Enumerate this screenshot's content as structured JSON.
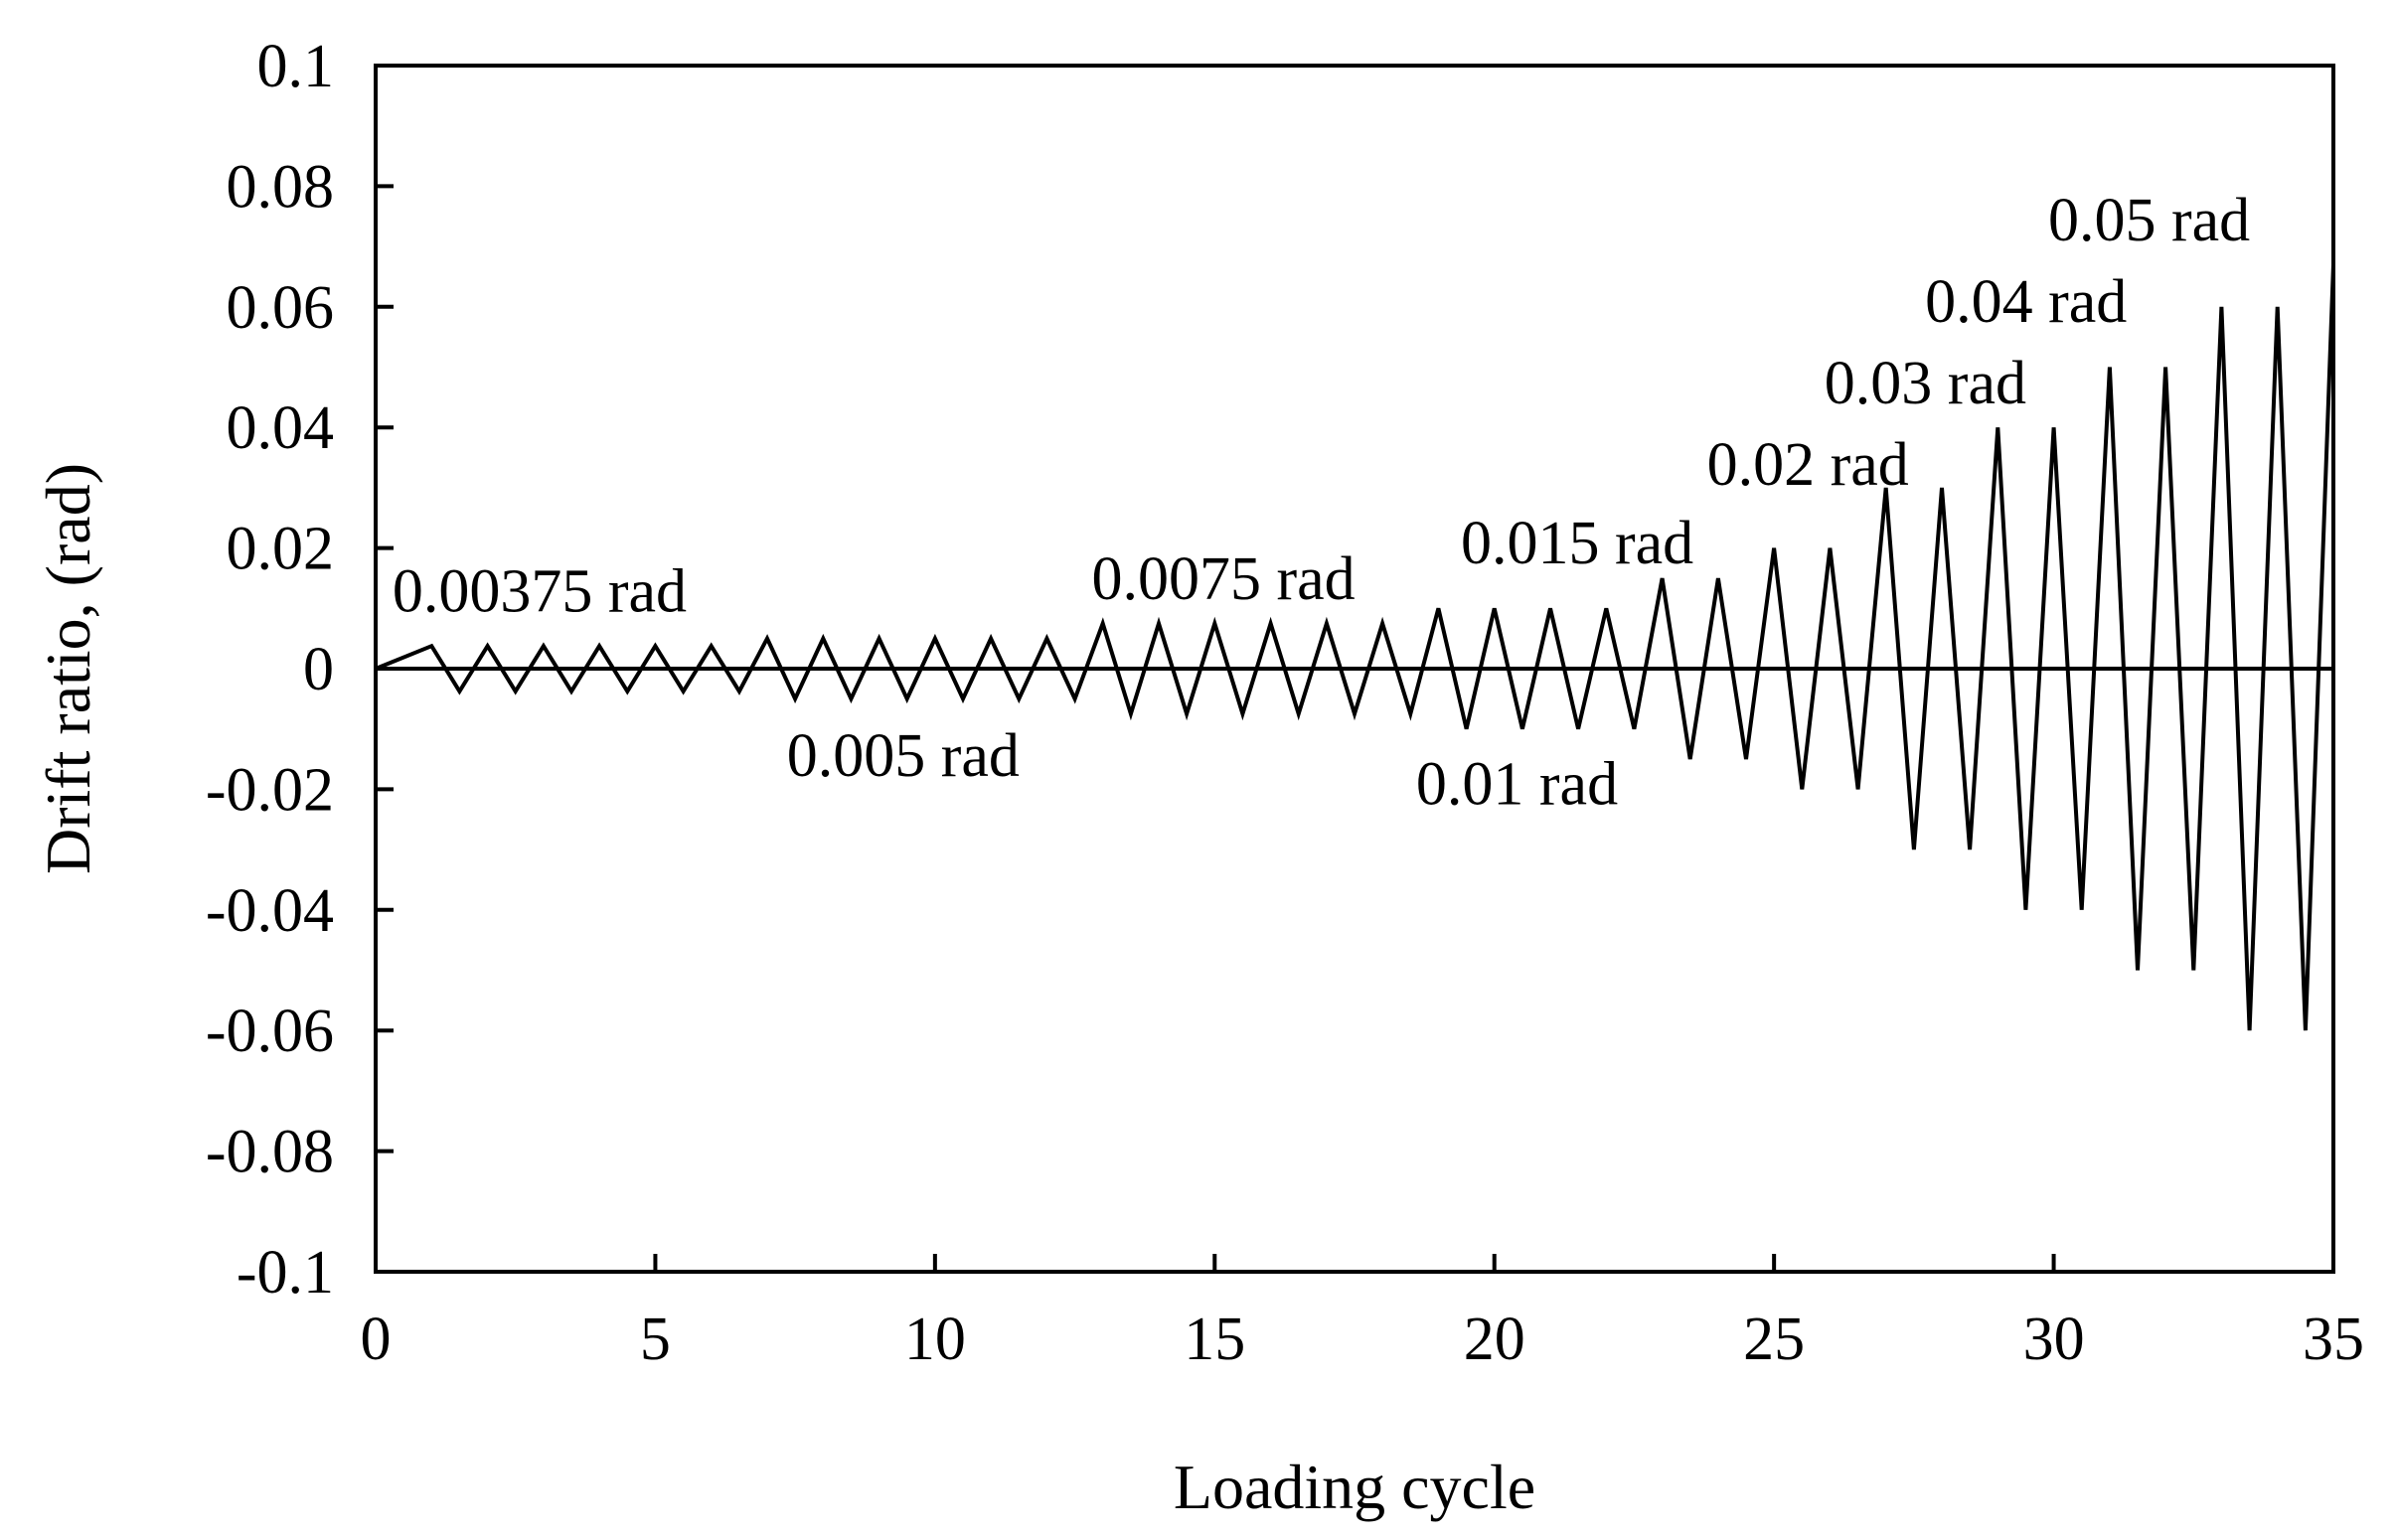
{
  "chart_data": {
    "type": "line",
    "title": "",
    "xlabel": "Loading cycle",
    "ylabel": "Drift  ratio,  (rad)",
    "xlim": [
      0,
      35
    ],
    "ylim": [
      -0.1,
      0.1
    ],
    "xticks": [
      0,
      5,
      10,
      15,
      20,
      25,
      30,
      35
    ],
    "xtick_labels": [
      "0",
      "5",
      "10",
      "15",
      "20",
      "25",
      "30",
      "35"
    ],
    "yticks": [
      0.1,
      0.08,
      0.06,
      0.04,
      0.02,
      0,
      -0.02,
      -0.04,
      -0.06,
      -0.08,
      -0.1
    ],
    "ytick_labels": [
      "0.1",
      "0.08",
      "0.06",
      "0.04",
      "0.02",
      "0",
      "-0.02",
      "-0.04",
      "-0.06",
      "-0.08",
      "-0.1"
    ],
    "grid": false,
    "legend": "none",
    "zero_line": true,
    "line_color": "#000000",
    "series": [
      {
        "x": [
          0,
          1,
          1.5,
          2,
          2.5,
          3,
          3.5,
          4,
          4.5,
          5,
          5.5,
          6,
          6.5,
          7,
          7.5,
          8,
          8.5,
          9,
          9.5,
          10,
          10.5,
          11,
          11.5,
          12,
          12.5,
          13,
          13.5,
          14,
          14.5,
          15,
          15.5,
          16,
          16.5,
          17,
          17.5,
          18,
          18.5,
          19,
          19.5,
          20,
          20.5,
          21,
          21.5,
          22,
          22.5,
          23,
          23.5,
          24,
          24.5,
          25,
          25.5,
          26,
          26.5,
          27,
          27.5,
          28,
          28.5,
          29,
          29.5,
          30,
          30.5,
          31,
          31.5,
          32,
          32.5,
          33,
          33.5,
          34,
          34.5,
          35,
          35
        ],
        "y": [
          0,
          0.00375,
          -0.00375,
          0.00375,
          -0.00375,
          0.00375,
          -0.00375,
          0.00375,
          -0.00375,
          0.00375,
          -0.00375,
          0.00375,
          -0.00375,
          0.005,
          -0.005,
          0.005,
          -0.005,
          0.005,
          -0.005,
          0.005,
          -0.005,
          0.005,
          -0.005,
          0.005,
          -0.005,
          0.0075,
          -0.0075,
          0.0075,
          -0.0075,
          0.0075,
          -0.0075,
          0.0075,
          -0.0075,
          0.0075,
          -0.0075,
          0.0075,
          -0.0075,
          0.01,
          -0.01,
          0.01,
          -0.01,
          0.01,
          -0.01,
          0.01,
          -0.01,
          0.015,
          -0.015,
          0.015,
          -0.015,
          0.02,
          -0.02,
          0.02,
          -0.02,
          0.03,
          -0.03,
          0.03,
          -0.03,
          0.04,
          -0.04,
          0.04,
          -0.04,
          0.05,
          -0.05,
          0.05,
          -0.05,
          0.06,
          -0.06,
          0.06,
          -0.06,
          0.067,
          0.035
        ]
      }
    ],
    "annotations": [
      {
        "text": "0.00375 rad",
        "x": 0.3,
        "y": 0.0095
      },
      {
        "text": "0.005 rad",
        "x": 7.35,
        "y": -0.0178
      },
      {
        "text": "0.0075 rad",
        "x": 12.8,
        "y": 0.0115
      },
      {
        "text": "0.01 rad",
        "x": 18.6,
        "y": -0.0225
      },
      {
        "text": "0.015 rad",
        "x": 19.4,
        "y": 0.0175
      },
      {
        "text": "0.02 rad",
        "x": 23.8,
        "y": 0.0305
      },
      {
        "text": "0.03 rad",
        "x": 25.9,
        "y": 0.044
      },
      {
        "text": "0.04 rad",
        "x": 27.7,
        "y": 0.0575
      },
      {
        "text": "0.05 rad",
        "x": 29.9,
        "y": 0.071
      }
    ]
  }
}
